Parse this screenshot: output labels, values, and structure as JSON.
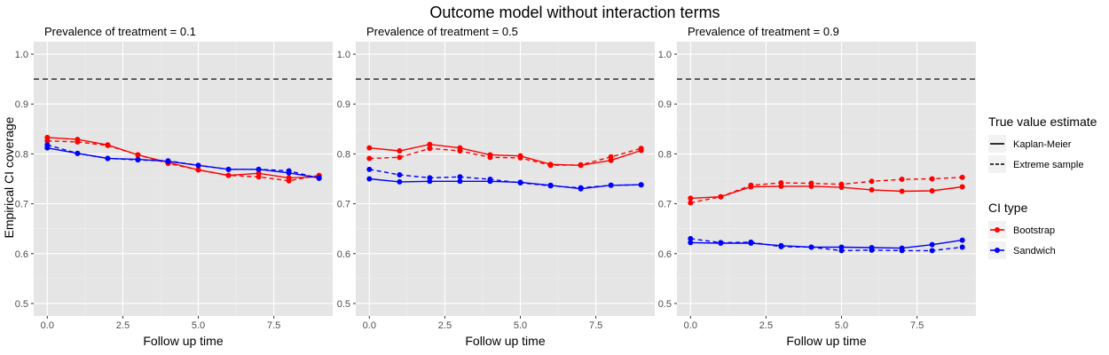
{
  "title": "Outcome model without interaction terms",
  "y_axis_title": "Empirical CI coverage",
  "x_axis_title": "Follow up time",
  "chart_data": {
    "type": "line",
    "title": "Outcome model without interaction terms",
    "xlabel": "Follow up time",
    "ylabel": "Empirical CI coverage",
    "xlim": [
      -0.45,
      9.45
    ],
    "ylim": [
      0.475,
      1.025
    ],
    "x_ticks": [
      0,
      2.5,
      5,
      7.5
    ],
    "x_tick_labels": [
      "0.0",
      "2.5",
      "5.0",
      "7.5"
    ],
    "y_ticks": [
      0.5,
      0.6,
      0.7,
      0.8,
      0.9,
      1.0
    ],
    "y_tick_labels": [
      "0.5",
      "0.6",
      "0.7",
      "0.8",
      "0.9",
      "1.0"
    ],
    "reference_line": {
      "y": 0.95,
      "style": "dashed",
      "color": "#333333"
    },
    "grid": true,
    "legend_placement": "right",
    "legends": [
      {
        "title": "True value estimate",
        "entries": [
          {
            "label": "Kaplan-Meier",
            "linetype": "solid"
          },
          {
            "label": "Extreme sample",
            "linetype": "dashed"
          }
        ]
      },
      {
        "title": "CI type",
        "entries": [
          {
            "label": "Bootstrap",
            "color": "#ff0000"
          },
          {
            "label": "Sandwich",
            "color": "#0000ff"
          }
        ]
      }
    ],
    "x": [
      0,
      1,
      2,
      3,
      4,
      5,
      6,
      7,
      8,
      9
    ],
    "panels": [
      {
        "title": "Prevalence of treatment = 0.1",
        "series": [
          {
            "ci": "Bootstrap",
            "estimate": "Kaplan-Meier",
            "color": "#ff0000",
            "linetype": "solid",
            "values": [
              0.833,
              0.829,
              0.818,
              0.798,
              0.783,
              0.768,
              0.757,
              0.761,
              0.752,
              0.754
            ]
          },
          {
            "ci": "Bootstrap",
            "estimate": "Extreme sample",
            "color": "#ff0000",
            "linetype": "dashed",
            "values": [
              0.826,
              0.824,
              0.817,
              0.798,
              0.781,
              0.768,
              0.757,
              0.754,
              0.746,
              0.757
            ]
          },
          {
            "ci": "Sandwich",
            "estimate": "Kaplan-Meier",
            "color": "#0000ff",
            "linetype": "solid",
            "values": [
              0.812,
              0.801,
              0.791,
              0.789,
              0.785,
              0.777,
              0.769,
              0.769,
              0.762,
              0.752
            ]
          },
          {
            "ci": "Sandwich",
            "estimate": "Extreme sample",
            "color": "#0000ff",
            "linetype": "dashed",
            "values": [
              0.818,
              0.801,
              0.791,
              0.788,
              0.786,
              0.777,
              0.769,
              0.769,
              0.766,
              0.751
            ]
          }
        ]
      },
      {
        "title": "Prevalence of treatment = 0.5",
        "series": [
          {
            "ci": "Bootstrap",
            "estimate": "Kaplan-Meier",
            "color": "#ff0000",
            "linetype": "solid",
            "values": [
              0.812,
              0.806,
              0.819,
              0.812,
              0.798,
              0.796,
              0.779,
              0.777,
              0.787,
              0.807
            ]
          },
          {
            "ci": "Bootstrap",
            "estimate": "Extreme sample",
            "color": "#ff0000",
            "linetype": "dashed",
            "values": [
              0.791,
              0.793,
              0.811,
              0.806,
              0.793,
              0.792,
              0.777,
              0.778,
              0.794,
              0.811
            ]
          },
          {
            "ci": "Sandwich",
            "estimate": "Kaplan-Meier",
            "color": "#0000ff",
            "linetype": "solid",
            "values": [
              0.75,
              0.744,
              0.745,
              0.745,
              0.745,
              0.743,
              0.737,
              0.73,
              0.737,
              0.738
            ]
          },
          {
            "ci": "Sandwich",
            "estimate": "Extreme sample",
            "color": "#0000ff",
            "linetype": "dashed",
            "values": [
              0.769,
              0.758,
              0.752,
              0.754,
              0.749,
              0.742,
              0.736,
              0.732,
              0.737,
              0.738
            ]
          }
        ]
      },
      {
        "title": "Prevalence of treatment = 0.9",
        "series": [
          {
            "ci": "Bootstrap",
            "estimate": "Kaplan-Meier",
            "color": "#ff0000",
            "linetype": "solid",
            "values": [
              0.711,
              0.714,
              0.734,
              0.735,
              0.735,
              0.733,
              0.728,
              0.725,
              0.726,
              0.734
            ]
          },
          {
            "ci": "Bootstrap",
            "estimate": "Extreme sample",
            "color": "#ff0000",
            "linetype": "dashed",
            "values": [
              0.702,
              0.714,
              0.737,
              0.742,
              0.741,
              0.739,
              0.745,
              0.749,
              0.75,
              0.753
            ]
          },
          {
            "ci": "Sandwich",
            "estimate": "Kaplan-Meier",
            "color": "#0000ff",
            "linetype": "solid",
            "values": [
              0.622,
              0.621,
              0.621,
              0.616,
              0.613,
              0.613,
              0.612,
              0.611,
              0.618,
              0.627
            ]
          },
          {
            "ci": "Sandwich",
            "estimate": "Extreme sample",
            "color": "#0000ff",
            "linetype": "dashed",
            "values": [
              0.63,
              0.622,
              0.623,
              0.614,
              0.613,
              0.606,
              0.607,
              0.606,
              0.606,
              0.613
            ]
          }
        ]
      }
    ]
  }
}
